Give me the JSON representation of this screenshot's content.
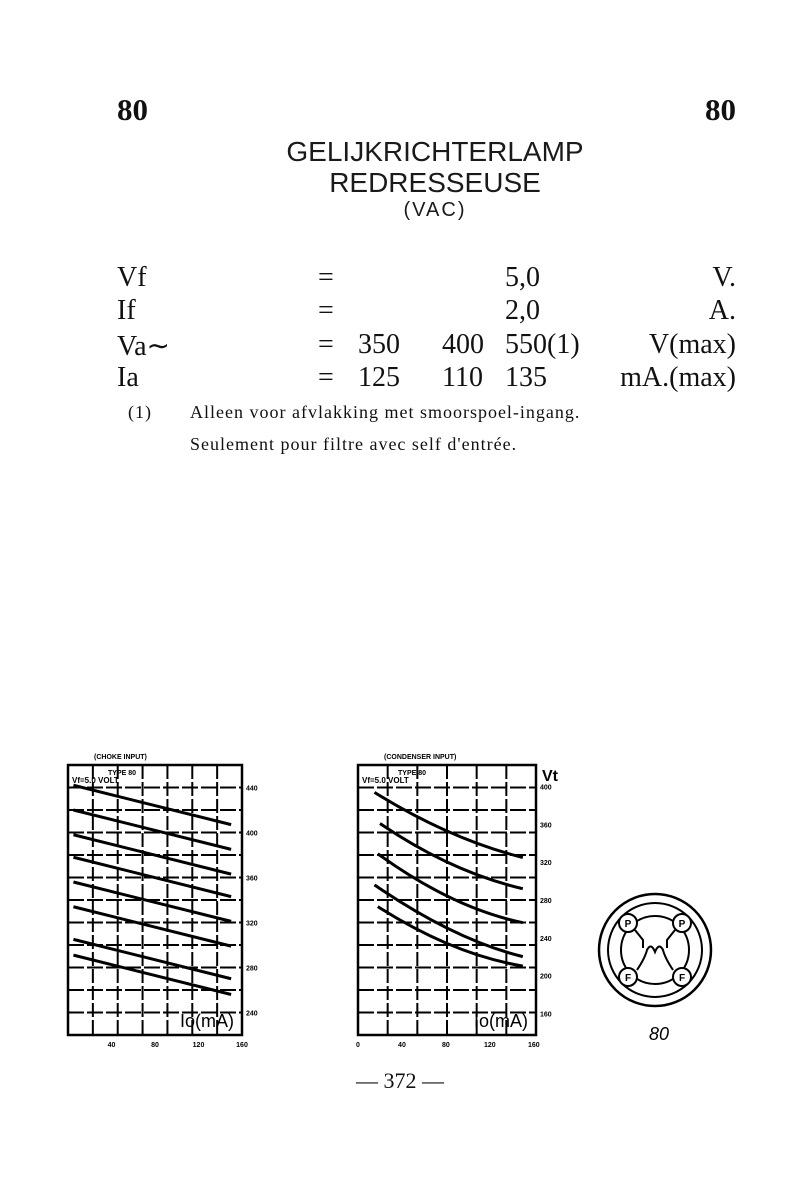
{
  "header": {
    "tube_left": "80",
    "tube_right": "80"
  },
  "title": {
    "line1": "GELIJKRICHTERLAMP",
    "line2": "REDRESSEUSE",
    "line3": "(VAC)"
  },
  "specs": [
    {
      "label": "Vf",
      "eq": "=",
      "values": [
        "",
        "",
        "5,0"
      ],
      "unit": "V."
    },
    {
      "label": "If",
      "eq": "=",
      "values": [
        "",
        "",
        "2,0"
      ],
      "unit": "A."
    },
    {
      "label": "Va∼",
      "eq": "=",
      "values": [
        "350",
        "400",
        "550(1)"
      ],
      "unit": "V(max)"
    },
    {
      "label": "Ia",
      "eq": "=",
      "values": [
        "125",
        "110",
        "135"
      ],
      "unit": "mA.(max)"
    }
  ],
  "footnote": {
    "marker": "(1)",
    "line1": "Alleen voor afvlakking met smoorspoel-ingang.",
    "line2": "Seulement pour filtre avec self d'entrée."
  },
  "figures": [
    {
      "heading": "(CHOKE INPUT)",
      "type_label": "TYPE 80",
      "vf_label": "Vf=5.0 VOLT",
      "xlabel": "Io(mA)",
      "ylabel": "",
      "x_ticks": [
        "40",
        "80",
        "120",
        "160"
      ],
      "y_ticks": [
        "440",
        "400",
        "360",
        "320",
        "280",
        "240"
      ],
      "xlim": [
        0,
        160
      ],
      "ylim": [
        220,
        460
      ],
      "series": [
        {
          "points": [
            [
              5,
              442
            ],
            [
              150,
              407
            ]
          ]
        },
        {
          "points": [
            [
              5,
              420
            ],
            [
              150,
              385
            ]
          ]
        },
        {
          "points": [
            [
              5,
              398
            ],
            [
              150,
              363
            ]
          ]
        },
        {
          "points": [
            [
              5,
              378
            ],
            [
              150,
              343
            ]
          ]
        },
        {
          "points": [
            [
              5,
              356
            ],
            [
              150,
              321
            ]
          ]
        },
        {
          "points": [
            [
              5,
              334
            ],
            [
              150,
              299
            ]
          ]
        },
        {
          "points": [
            [
              5,
              305
            ],
            [
              150,
              270
            ]
          ]
        },
        {
          "points": [
            [
              5,
              291
            ],
            [
              150,
              256
            ]
          ]
        }
      ]
    },
    {
      "heading": "(CONDENSER INPUT)",
      "type_label": "TYPE 80",
      "vf_label": "Vf=5.0 VOLT",
      "xlabel": "Io(mA)",
      "ylabel": "Vt",
      "x_ticks": [
        "0",
        "40",
        "80",
        "120",
        "160"
      ],
      "y_ticks": [
        "400",
        "360",
        "320",
        "280",
        "240",
        "200",
        "160"
      ],
      "xlim": [
        0,
        162
      ],
      "ylim": [
        137,
        423
      ],
      "series": [
        {
          "points": [
            [
              15,
              394
            ],
            [
              83,
              352
            ],
            [
              150,
              325
            ]
          ]
        },
        {
          "points": [
            [
              20,
              361
            ],
            [
              85,
              318
            ],
            [
              150,
              292
            ]
          ]
        },
        {
          "points": [
            [
              18,
              329
            ],
            [
              85,
              282
            ],
            [
              150,
              256
            ]
          ]
        },
        {
          "points": [
            [
              15,
              296
            ],
            [
              85,
              248
            ],
            [
              150,
              220
            ]
          ]
        },
        {
          "points": [
            [
              18,
              273
            ],
            [
              85,
              232
            ],
            [
              150,
              210
            ]
          ]
        }
      ]
    }
  ],
  "socket": {
    "pins": [
      "P",
      "P",
      "F",
      "F"
    ],
    "caption": "80"
  },
  "page_number": "— 372 —"
}
